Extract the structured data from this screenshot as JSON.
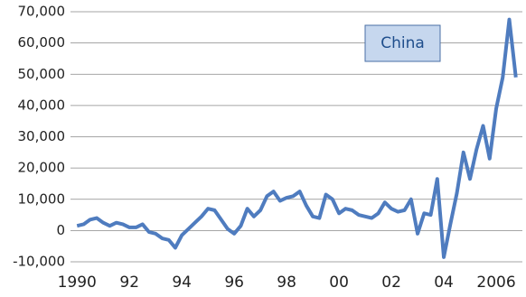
{
  "chart_data": {
    "type": "line",
    "annotations": [
      "China"
    ],
    "x": [
      1990,
      1990.25,
      1990.5,
      1990.75,
      1991,
      1991.25,
      1991.5,
      1991.75,
      1992,
      1992.25,
      1992.5,
      1992.75,
      1993,
      1993.25,
      1993.5,
      1993.75,
      1994,
      1994.25,
      1994.5,
      1994.75,
      1995,
      1995.25,
      1995.5,
      1995.75,
      1996,
      1996.25,
      1996.5,
      1996.75,
      1997,
      1997.25,
      1997.5,
      1997.75,
      1998,
      1998.25,
      1998.5,
      1998.75,
      1999,
      1999.25,
      1999.5,
      1999.75,
      2000,
      2000.25,
      2000.5,
      2000.75,
      2001,
      2001.25,
      2001.5,
      2001.75,
      2002,
      2002.25,
      2002.5,
      2002.75,
      2003,
      2003.25,
      2003.5,
      2003.75,
      2004,
      2004.25,
      2004.5,
      2004.75,
      2005,
      2005.25,
      2005.5,
      2005.75,
      2006,
      2006.25,
      2006.5,
      2006.75
    ],
    "series": [
      {
        "name": "China",
        "color": "#4f7cbf",
        "values": [
          1500,
          2000,
          3500,
          4000,
          2500,
          1500,
          2500,
          2000,
          1000,
          1000,
          2000,
          -500,
          -1000,
          -2500,
          -3000,
          -5500,
          -1500,
          500,
          2500,
          4500,
          7000,
          6500,
          3500,
          500,
          -1000,
          1500,
          7000,
          4500,
          6500,
          11000,
          12500,
          9500,
          10500,
          11000,
          12500,
          8000,
          4500,
          4000,
          11500,
          10000,
          5500,
          7000,
          6500,
          5000,
          4500,
          4000,
          5500,
          9000,
          7000,
          6000,
          6500,
          10000,
          -1000,
          5500,
          5000,
          16500,
          -8500,
          2000,
          12000,
          25000,
          16500,
          26000,
          33500,
          23000,
          39000,
          49000,
          67500,
          49000
        ]
      }
    ],
    "xlim": [
      1989.75,
      2007
    ],
    "xticks": [
      1990,
      {
        "value": 1992,
        "label": "92"
      },
      {
        "value": 1994,
        "label": "94"
      },
      {
        "value": 1996,
        "label": "96"
      },
      {
        "value": 1998,
        "label": "98"
      },
      {
        "value": 2000,
        "label": "00"
      },
      {
        "value": 2002,
        "label": "02"
      },
      {
        "value": 2004,
        "label": "04"
      },
      2006
    ],
    "ylim": [
      -10000,
      70000
    ],
    "yticks": [
      {
        "value": -10000,
        "label": "-10,000"
      },
      0,
      {
        "value": 10000,
        "label": "10,000"
      },
      {
        "value": 20000,
        "label": "20,000"
      },
      {
        "value": 30000,
        "label": "30,000"
      },
      {
        "value": 40000,
        "label": "40,000"
      },
      {
        "value": 50000,
        "label": "50,000"
      },
      {
        "value": 60000,
        "label": "60,000"
      },
      {
        "value": 70000,
        "label": "70,000"
      }
    ],
    "grid": true
  }
}
